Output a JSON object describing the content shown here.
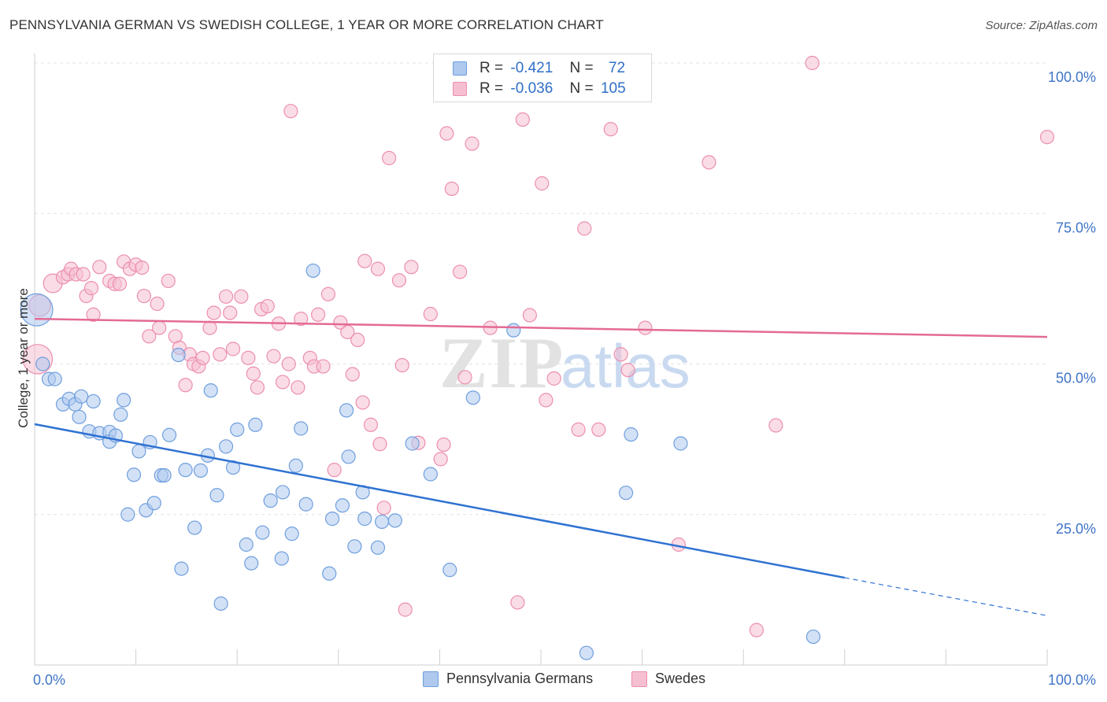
{
  "header": {
    "title": "PENNSYLVANIA GERMAN VS SWEDISH COLLEGE, 1 YEAR OR MORE CORRELATION CHART",
    "source": "Source: ZipAtlas.com"
  },
  "legend_top": {
    "rows": [
      {
        "r_label": "R =",
        "r_value": "-0.421",
        "n_label": "N =",
        "n_value": "72"
      },
      {
        "r_label": "R =",
        "r_value": "-0.036",
        "n_label": "N =",
        "n_value": "105"
      }
    ]
  },
  "bottom_legend": {
    "items": [
      "Pennsylvania Germans",
      "Swedes"
    ]
  },
  "watermark": {
    "zip": "ZIP",
    "atlas": "atlas"
  },
  "colors": {
    "blue_fill": "#aec8ee",
    "blue_stroke": "#6f9fde",
    "blue_line": "#2f72d2",
    "pink_fill": "#f6bfd1",
    "pink_stroke": "#ec8fae",
    "pink_line": "#e46a96",
    "tick_text": "#3f74c7",
    "grid": "#e3e3e3"
  },
  "chart_data": {
    "type": "scatter",
    "title": "PENNSYLVANIA GERMAN VS SWEDISH COLLEGE, 1 YEAR OR MORE CORRELATION CHART",
    "xlabel": "",
    "ylabel": "College, 1 year or more",
    "xlim": [
      0,
      100
    ],
    "ylim": [
      0,
      100
    ],
    "x_ticks": [
      "0.0%",
      "100.0%"
    ],
    "y_ticks": [
      "25.0%",
      "50.0%",
      "75.0%",
      "100.0%"
    ],
    "grid": true,
    "legend": "bottom",
    "series": [
      {
        "name": "Pennsylvania Germans",
        "R": -0.421,
        "N": 72,
        "trend": {
          "x0": 0,
          "y0": 40.0,
          "x1": 80,
          "y1": 14.5,
          "dash_to_x": 100,
          "dash_to_y": 8.2
        },
        "points": [
          [
            0.2,
            59.0,
            24
          ],
          [
            0.8,
            50.0,
            10
          ],
          [
            1.4,
            47.5,
            10
          ],
          [
            2.0,
            47.5,
            10
          ],
          [
            2.8,
            43.3,
            10
          ],
          [
            3.4,
            44.2,
            10
          ],
          [
            4.0,
            43.3,
            10
          ],
          [
            4.4,
            41.2,
            10
          ],
          [
            4.6,
            44.6,
            10
          ],
          [
            5.8,
            43.8,
            10
          ],
          [
            5.4,
            38.8,
            10
          ],
          [
            6.4,
            38.5,
            10
          ],
          [
            7.4,
            38.7,
            10
          ],
          [
            7.4,
            37.1,
            10
          ],
          [
            8.0,
            38.1,
            10
          ],
          [
            8.5,
            41.6,
            10
          ],
          [
            8.8,
            44.0,
            10
          ],
          [
            9.2,
            25.0,
            10
          ],
          [
            9.8,
            31.6,
            10
          ],
          [
            10.3,
            35.5,
            10
          ],
          [
            11.0,
            25.7,
            10
          ],
          [
            11.4,
            37.0,
            10
          ],
          [
            11.8,
            26.9,
            10
          ],
          [
            12.5,
            31.5,
            10
          ],
          [
            12.8,
            31.5,
            10
          ],
          [
            13.3,
            38.2,
            10
          ],
          [
            14.2,
            51.5,
            10
          ],
          [
            14.5,
            16.0,
            10
          ],
          [
            14.9,
            32.4,
            10
          ],
          [
            15.8,
            22.8,
            10
          ],
          [
            16.4,
            32.3,
            10
          ],
          [
            17.1,
            34.8,
            10
          ],
          [
            17.4,
            45.6,
            10
          ],
          [
            18.0,
            28.2,
            10
          ],
          [
            18.4,
            10.2,
            10
          ],
          [
            18.9,
            36.3,
            10
          ],
          [
            19.6,
            32.8,
            10
          ],
          [
            20.0,
            39.1,
            10
          ],
          [
            20.9,
            20.0,
            10
          ],
          [
            21.4,
            16.9,
            10
          ],
          [
            21.8,
            39.9,
            10
          ],
          [
            22.5,
            22.0,
            10
          ],
          [
            23.3,
            27.3,
            10
          ],
          [
            24.4,
            17.7,
            10
          ],
          [
            24.5,
            28.7,
            10
          ],
          [
            25.4,
            21.8,
            10
          ],
          [
            25.8,
            33.1,
            10
          ],
          [
            26.3,
            39.3,
            10
          ],
          [
            26.8,
            26.7,
            10
          ],
          [
            27.5,
            65.5,
            10
          ],
          [
            29.1,
            15.2,
            10
          ],
          [
            29.4,
            24.3,
            10
          ],
          [
            30.4,
            26.5,
            10
          ],
          [
            30.8,
            42.3,
            10
          ],
          [
            31.0,
            34.6,
            10
          ],
          [
            31.6,
            19.7,
            10
          ],
          [
            32.4,
            28.7,
            10
          ],
          [
            32.6,
            24.3,
            10
          ],
          [
            33.9,
            19.5,
            10
          ],
          [
            34.3,
            23.8,
            10
          ],
          [
            35.6,
            24.0,
            10
          ],
          [
            37.3,
            36.8,
            10
          ],
          [
            39.1,
            31.7,
            10
          ],
          [
            41.0,
            15.8,
            10
          ],
          [
            43.3,
            44.4,
            10
          ],
          [
            47.3,
            55.6,
            10
          ],
          [
            54.5,
            2.0,
            10
          ],
          [
            58.4,
            28.6,
            10
          ],
          [
            58.9,
            38.3,
            10
          ],
          [
            63.8,
            36.8,
            10
          ],
          [
            76.9,
            4.7,
            10
          ]
        ]
      },
      {
        "name": "Swedes",
        "R": -0.036,
        "N": 105,
        "trend": {
          "x0": 0,
          "y0": 57.5,
          "x1": 100,
          "y1": 54.5
        },
        "points": [
          [
            0.3,
            50.8,
            22
          ],
          [
            0.5,
            59.7,
            16
          ],
          [
            1.8,
            63.4,
            14
          ],
          [
            2.8,
            64.4,
            10
          ],
          [
            3.3,
            64.9,
            10
          ],
          [
            3.6,
            65.8,
            10
          ],
          [
            4.1,
            64.9,
            10
          ],
          [
            4.8,
            64.9,
            10
          ],
          [
            5.1,
            61.3,
            10
          ],
          [
            5.6,
            62.6,
            10
          ],
          [
            5.8,
            58.2,
            10
          ],
          [
            6.4,
            66.1,
            10
          ],
          [
            7.4,
            63.8,
            10
          ],
          [
            7.9,
            63.3,
            10
          ],
          [
            8.4,
            63.3,
            10
          ],
          [
            8.8,
            67.0,
            10
          ],
          [
            9.4,
            65.8,
            10
          ],
          [
            10.0,
            66.5,
            10
          ],
          [
            10.6,
            66.0,
            10
          ],
          [
            10.8,
            61.3,
            10
          ],
          [
            11.3,
            54.6,
            10
          ],
          [
            12.1,
            60.0,
            10
          ],
          [
            12.3,
            56.0,
            10
          ],
          [
            13.2,
            63.8,
            10
          ],
          [
            13.9,
            54.6,
            10
          ],
          [
            14.3,
            52.7,
            10
          ],
          [
            14.9,
            46.5,
            10
          ],
          [
            15.3,
            51.6,
            10
          ],
          [
            15.7,
            50.0,
            10
          ],
          [
            16.2,
            49.6,
            10
          ],
          [
            16.6,
            51.0,
            10
          ],
          [
            17.3,
            56.0,
            10
          ],
          [
            17.7,
            58.5,
            10
          ],
          [
            18.3,
            51.6,
            10
          ],
          [
            18.9,
            61.2,
            10
          ],
          [
            19.3,
            58.5,
            10
          ],
          [
            19.6,
            52.5,
            10
          ],
          [
            20.4,
            61.2,
            10
          ],
          [
            21.1,
            51.0,
            10
          ],
          [
            21.6,
            48.4,
            10
          ],
          [
            22.0,
            46.1,
            10
          ],
          [
            22.4,
            59.1,
            10
          ],
          [
            23.0,
            59.6,
            10
          ],
          [
            23.6,
            51.3,
            10
          ],
          [
            24.1,
            56.7,
            10
          ],
          [
            24.5,
            47.0,
            10
          ],
          [
            25.1,
            50.0,
            10
          ],
          [
            25.3,
            92.0,
            10
          ],
          [
            26.0,
            46.1,
            10
          ],
          [
            26.3,
            57.5,
            10
          ],
          [
            27.2,
            51.0,
            10
          ],
          [
            27.6,
            49.6,
            10
          ],
          [
            28.0,
            58.2,
            10
          ],
          [
            28.5,
            49.6,
            10
          ],
          [
            29.0,
            61.6,
            10
          ],
          [
            29.6,
            32.4,
            10
          ],
          [
            30.2,
            56.9,
            10
          ],
          [
            30.9,
            55.3,
            10
          ],
          [
            31.4,
            48.3,
            10
          ],
          [
            31.9,
            54.0,
            10
          ],
          [
            32.4,
            43.6,
            10
          ],
          [
            32.6,
            67.1,
            10
          ],
          [
            33.2,
            39.9,
            10
          ],
          [
            33.9,
            65.8,
            10
          ],
          [
            34.1,
            36.7,
            10
          ],
          [
            34.5,
            26.1,
            10
          ],
          [
            35.0,
            84.2,
            10
          ],
          [
            36.0,
            63.9,
            10
          ],
          [
            36.3,
            49.8,
            10
          ],
          [
            36.6,
            9.2,
            10
          ],
          [
            37.2,
            66.1,
            10
          ],
          [
            37.9,
            36.9,
            10
          ],
          [
            39.1,
            58.3,
            10
          ],
          [
            40.1,
            34.2,
            10
          ],
          [
            40.4,
            36.6,
            10
          ],
          [
            40.7,
            88.3,
            10
          ],
          [
            41.2,
            79.1,
            10
          ],
          [
            42.0,
            65.3,
            10
          ],
          [
            42.5,
            47.8,
            10
          ],
          [
            43.2,
            86.6,
            10
          ],
          [
            45.0,
            56.0,
            10
          ],
          [
            47.2,
            100.0,
            10
          ],
          [
            47.7,
            10.4,
            10
          ],
          [
            48.2,
            90.6,
            10
          ],
          [
            48.9,
            58.1,
            10
          ],
          [
            50.1,
            80.0,
            10
          ],
          [
            50.5,
            44.0,
            10
          ],
          [
            51.3,
            47.6,
            10
          ],
          [
            53.7,
            39.1,
            10
          ],
          [
            54.3,
            72.5,
            10
          ],
          [
            55.7,
            39.1,
            10
          ],
          [
            56.9,
            89.0,
            10
          ],
          [
            57.9,
            51.6,
            10
          ],
          [
            58.6,
            49.0,
            10
          ],
          [
            60.3,
            56.0,
            10
          ],
          [
            63.6,
            20.0,
            10
          ],
          [
            66.6,
            83.5,
            10
          ],
          [
            71.3,
            5.8,
            10
          ],
          [
            73.2,
            39.8,
            10
          ],
          [
            76.8,
            100.0,
            10
          ],
          [
            100.0,
            87.7,
            10
          ]
        ]
      }
    ]
  }
}
